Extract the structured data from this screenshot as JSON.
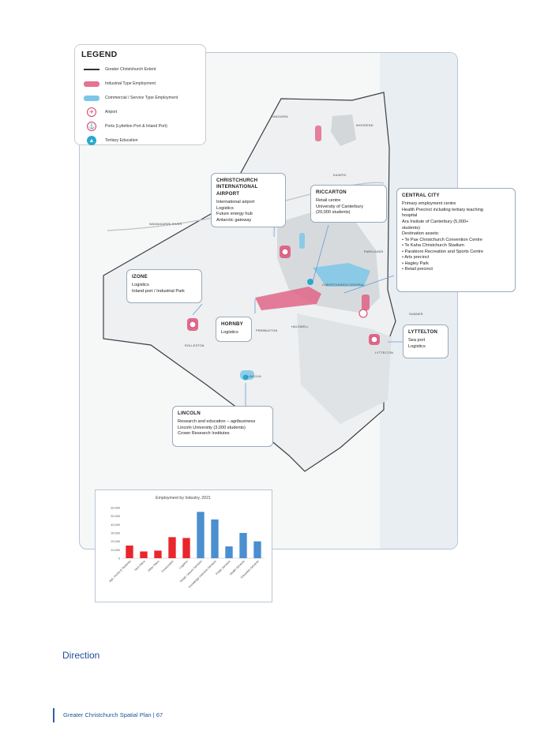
{
  "legend": {
    "title": "LEGEND",
    "items": [
      {
        "label": "Greater Christchurch Extent",
        "icon": "extent-line-icon"
      },
      {
        "label": "Industrial Type Employment",
        "icon": "industrial-swatch-icon"
      },
      {
        "label": "Commercial / Service Type Employment",
        "icon": "commercial-swatch-icon"
      },
      {
        "label": "Airport",
        "icon": "airport-icon"
      },
      {
        "label": "Ports (Lyttelton Port & Inland Port)",
        "icon": "port-icon"
      },
      {
        "label": "Tertiary Education",
        "icon": "education-icon"
      }
    ]
  },
  "colors": {
    "industrial": "#e05a7f",
    "commercial": "#7cc7e8",
    "accent": "#1f4e9a",
    "industrial_bar": "#e8262c",
    "commercial_bar": "#4a8fd0"
  },
  "places": {
    "rangiora": "RANGIORA",
    "woodend": "WOODEND",
    "kaiapoi": "KAIAPOI",
    "waimakariri": "WAIMAKARIRI RIVER",
    "parklands": "PARKLANDS",
    "christchurch_central": "CHRISTCHURCH CENTRAL",
    "sumner": "SUMNER",
    "halswell": "HALSWELL",
    "prebbleton": "PREBBLETON",
    "rolleston": "ROLLESTON",
    "lyttelton": "LYTTELTON",
    "lincoln": "LINCOLN"
  },
  "callouts": {
    "airport": {
      "title": "CHRISTCHURCH INTERNATIONAL AIRPORT",
      "lines": [
        "International airport",
        "Logistics",
        "Future energy hub",
        "Antarctic gateway"
      ]
    },
    "riccarton": {
      "title": "RICCARTON",
      "lines": [
        "Retail centre",
        "University of Canterbury",
        "(20,000 students)"
      ]
    },
    "central_city": {
      "title": "CENTRAL CITY",
      "lines": [
        "Primary employment centre",
        "Health Precinct including tertiary teaching",
        "hospital",
        "Ara Insitute of Canterbury (5,000+",
        "students)",
        "Destination assets:",
        "• Te Pae Christchurch Convention Centre",
        "• Te Kaha Christchurch Stadium",
        "• Parakiore Recreation and Sports Centre",
        "• Arts precinct",
        "• Hagley Park",
        "• Retail precinct"
      ]
    },
    "izone": {
      "title": "IZONE",
      "lines": [
        "Logistics",
        "Inland port / Industrial Park"
      ]
    },
    "hornby": {
      "title": "HORNBY",
      "lines": [
        "Logistics"
      ]
    },
    "lyttelton": {
      "title": "LYTTELTON",
      "lines": [
        "Sea port",
        "Logistics"
      ]
    },
    "lincoln": {
      "title": "LINCOLN",
      "lines": [
        "Research and education – agribusiness",
        "Lincoln University (3,000 students)",
        "Crown Research Institutes"
      ]
    }
  },
  "chart_data": {
    "type": "bar",
    "title": "Employment by Industry, 2021",
    "categories": [
      "Agri, Forest & Fisheries",
      "Tech Manu",
      "Other Manu",
      "Construction",
      "Logistics",
      "Retail, Leisure Services",
      "Knowledge Intensive Services",
      "Public Services",
      "Health Services",
      "Education Services"
    ],
    "values": [
      15000,
      8000,
      9000,
      25000,
      24000,
      55000,
      46000,
      14000,
      30000,
      20000
    ],
    "bar_colors": [
      "#e8262c",
      "#e8262c",
      "#e8262c",
      "#e8262c",
      "#e8262c",
      "#4a8fd0",
      "#4a8fd0",
      "#4a8fd0",
      "#4a8fd0",
      "#4a8fd0"
    ],
    "ylim": [
      0,
      60000
    ],
    "yticks": [
      "0",
      "10,000",
      "20,000",
      "30,000",
      "40,000",
      "50,000",
      "60,000"
    ],
    "xlabel": "",
    "ylabel": "",
    "grid": false,
    "legend": "none"
  },
  "footer": {
    "section": "Direction",
    "page_label": "Greater Christchurch Spatial Plan | 67"
  }
}
